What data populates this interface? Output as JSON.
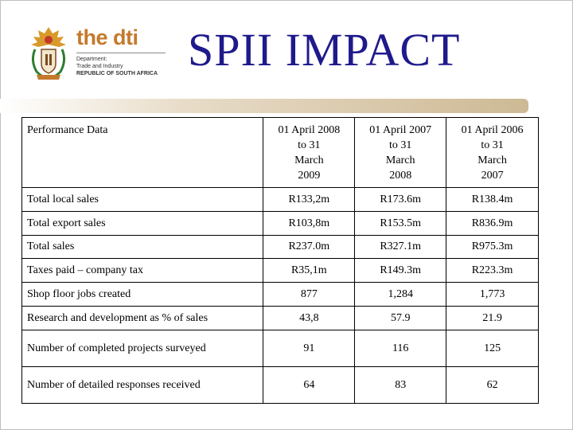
{
  "logo": {
    "brand_the": "the",
    "brand_dti": "dti",
    "dept_line1": "Department:",
    "dept_line2": "Trade and Industry",
    "dept_line3": "REPUBLIC OF SOUTH AFRICA"
  },
  "title": "SPII IMPACT",
  "table": {
    "header_label": "Performance Data",
    "columns": [
      {
        "l1": "01 April 2008",
        "l2": "to 31",
        "l3": "March",
        "l4": "2009"
      },
      {
        "l1": "01 April 2007",
        "l2": "to 31",
        "l3": "March",
        "l4": "2008"
      },
      {
        "l1": "01 April 2006",
        "l2": "to 31",
        "l3": "March",
        "l4": "2007"
      }
    ],
    "rows": [
      {
        "label": "Total local sales",
        "v": [
          "R133,2m",
          "R173.6m",
          "R138.4m"
        ]
      },
      {
        "label": "Total export sales",
        "v": [
          "R103,8m",
          "R153.5m",
          "R836.9m"
        ]
      },
      {
        "label": "Total sales",
        "v": [
          "R237.0m",
          "R327.1m",
          "R975.3m"
        ]
      },
      {
        "label": "Taxes paid – company tax",
        "v": [
          "R35,1m",
          "R149.3m",
          "R223.3m"
        ]
      },
      {
        "label": "Shop floor jobs created",
        "v": [
          "877",
          "1,284",
          "1,773"
        ]
      },
      {
        "label": "Research and development as % of sales",
        "v": [
          "43,8",
          "57.9",
          "21.9"
        ]
      },
      {
        "label": "Number of completed projects surveyed",
        "v": [
          "91",
          "116",
          "125"
        ]
      },
      {
        "label": "Number of detailed responses received",
        "v": [
          "64",
          "83",
          "62"
        ]
      }
    ]
  }
}
